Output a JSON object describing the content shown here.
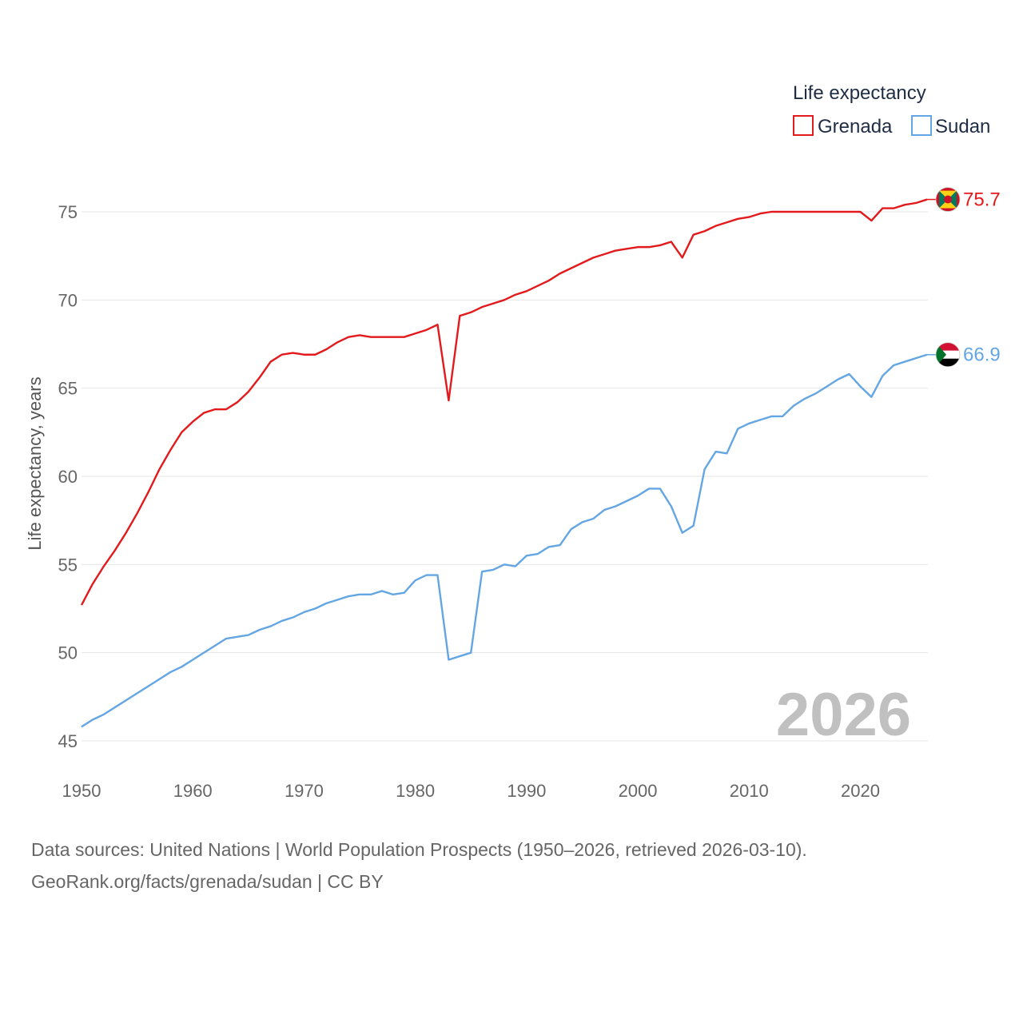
{
  "chart_data": {
    "type": "line",
    "legend_title": "Life expectancy",
    "ylabel": "Life expectancy, years",
    "xlabel": "",
    "xlim": [
      1950,
      2026
    ],
    "ylim": [
      45,
      77
    ],
    "y_ticks": [
      45,
      50,
      55,
      60,
      65,
      70,
      75
    ],
    "x_ticks": [
      1950,
      1960,
      1970,
      1980,
      1990,
      2000,
      2010,
      2020
    ],
    "year_label": "2026",
    "legend_position": "top-right",
    "grid": true,
    "series": [
      {
        "name": "Grenada",
        "color": "#e31a1c",
        "end_label": "75.7",
        "flag_colors": [
          "#ce1126",
          "#fcd116",
          "#007a5e"
        ],
        "values": [
          [
            1950,
            52.7
          ],
          [
            1951,
            53.9
          ],
          [
            1952,
            54.9
          ],
          [
            1953,
            55.8
          ],
          [
            1954,
            56.8
          ],
          [
            1955,
            57.9
          ],
          [
            1956,
            59.1
          ],
          [
            1957,
            60.4
          ],
          [
            1958,
            61.5
          ],
          [
            1959,
            62.5
          ],
          [
            1960,
            63.1
          ],
          [
            1961,
            63.6
          ],
          [
            1962,
            63.8
          ],
          [
            1963,
            63.8
          ],
          [
            1964,
            64.2
          ],
          [
            1965,
            64.8
          ],
          [
            1966,
            65.6
          ],
          [
            1967,
            66.5
          ],
          [
            1968,
            66.9
          ],
          [
            1969,
            67.0
          ],
          [
            1970,
            66.9
          ],
          [
            1971,
            66.9
          ],
          [
            1972,
            67.2
          ],
          [
            1973,
            67.6
          ],
          [
            1974,
            67.9
          ],
          [
            1975,
            68.0
          ],
          [
            1976,
            67.9
          ],
          [
            1977,
            67.9
          ],
          [
            1978,
            67.9
          ],
          [
            1979,
            67.9
          ],
          [
            1980,
            68.1
          ],
          [
            1981,
            68.3
          ],
          [
            1982,
            68.6
          ],
          [
            1983,
            64.3
          ],
          [
            1984,
            69.1
          ],
          [
            1985,
            69.3
          ],
          [
            1986,
            69.6
          ],
          [
            1987,
            69.8
          ],
          [
            1988,
            70.0
          ],
          [
            1989,
            70.3
          ],
          [
            1990,
            70.5
          ],
          [
            1991,
            70.8
          ],
          [
            1992,
            71.1
          ],
          [
            1993,
            71.5
          ],
          [
            1994,
            71.8
          ],
          [
            1995,
            72.1
          ],
          [
            1996,
            72.4
          ],
          [
            1997,
            72.6
          ],
          [
            1998,
            72.8
          ],
          [
            1999,
            72.9
          ],
          [
            2000,
            73.0
          ],
          [
            2001,
            73.0
          ],
          [
            2002,
            73.1
          ],
          [
            2003,
            73.3
          ],
          [
            2004,
            72.4
          ],
          [
            2005,
            73.7
          ],
          [
            2006,
            73.9
          ],
          [
            2007,
            74.2
          ],
          [
            2008,
            74.4
          ],
          [
            2009,
            74.6
          ],
          [
            2010,
            74.7
          ],
          [
            2011,
            74.9
          ],
          [
            2012,
            75.0
          ],
          [
            2013,
            75.0
          ],
          [
            2014,
            75.0
          ],
          [
            2015,
            75.0
          ],
          [
            2016,
            75.0
          ],
          [
            2017,
            75.0
          ],
          [
            2018,
            75.0
          ],
          [
            2019,
            75.0
          ],
          [
            2020,
            75.0
          ],
          [
            2021,
            74.5
          ],
          [
            2022,
            75.2
          ],
          [
            2023,
            75.2
          ],
          [
            2024,
            75.4
          ],
          [
            2025,
            75.5
          ],
          [
            2026,
            75.7
          ]
        ]
      },
      {
        "name": "Sudan",
        "color": "#64a6e3",
        "end_label": "66.9",
        "flag_colors": [
          "#d21034",
          "#ffffff",
          "#000000",
          "#007229"
        ],
        "values": [
          [
            1950,
            45.8
          ],
          [
            1951,
            46.2
          ],
          [
            1952,
            46.5
          ],
          [
            1953,
            46.9
          ],
          [
            1954,
            47.3
          ],
          [
            1955,
            47.7
          ],
          [
            1956,
            48.1
          ],
          [
            1957,
            48.5
          ],
          [
            1958,
            48.9
          ],
          [
            1959,
            49.2
          ],
          [
            1960,
            49.6
          ],
          [
            1961,
            50.0
          ],
          [
            1962,
            50.4
          ],
          [
            1963,
            50.8
          ],
          [
            1964,
            50.9
          ],
          [
            1965,
            51.0
          ],
          [
            1966,
            51.3
          ],
          [
            1967,
            51.5
          ],
          [
            1968,
            51.8
          ],
          [
            1969,
            52.0
          ],
          [
            1970,
            52.3
          ],
          [
            1971,
            52.5
          ],
          [
            1972,
            52.8
          ],
          [
            1973,
            53.0
          ],
          [
            1974,
            53.2
          ],
          [
            1975,
            53.3
          ],
          [
            1976,
            53.3
          ],
          [
            1977,
            53.5
          ],
          [
            1978,
            53.3
          ],
          [
            1979,
            53.4
          ],
          [
            1980,
            54.1
          ],
          [
            1981,
            54.4
          ],
          [
            1982,
            54.4
          ],
          [
            1983,
            49.6
          ],
          [
            1984,
            49.8
          ],
          [
            1985,
            50.0
          ],
          [
            1986,
            54.6
          ],
          [
            1987,
            54.7
          ],
          [
            1988,
            55.0
          ],
          [
            1989,
            54.9
          ],
          [
            1990,
            55.5
          ],
          [
            1991,
            55.6
          ],
          [
            1992,
            56.0
          ],
          [
            1993,
            56.1
          ],
          [
            1994,
            57.0
          ],
          [
            1995,
            57.4
          ],
          [
            1996,
            57.6
          ],
          [
            1997,
            58.1
          ],
          [
            1998,
            58.3
          ],
          [
            1999,
            58.6
          ],
          [
            2000,
            58.9
          ],
          [
            2001,
            59.3
          ],
          [
            2002,
            59.3
          ],
          [
            2003,
            58.3
          ],
          [
            2004,
            56.8
          ],
          [
            2005,
            57.2
          ],
          [
            2006,
            60.4
          ],
          [
            2007,
            61.4
          ],
          [
            2008,
            61.3
          ],
          [
            2009,
            62.7
          ],
          [
            2010,
            63.0
          ],
          [
            2011,
            63.2
          ],
          [
            2012,
            63.4
          ],
          [
            2013,
            63.4
          ],
          [
            2014,
            64.0
          ],
          [
            2015,
            64.4
          ],
          [
            2016,
            64.7
          ],
          [
            2017,
            65.1
          ],
          [
            2018,
            65.5
          ],
          [
            2019,
            65.8
          ],
          [
            2020,
            65.1
          ],
          [
            2021,
            64.5
          ],
          [
            2022,
            65.7
          ],
          [
            2023,
            66.3
          ],
          [
            2024,
            66.5
          ],
          [
            2025,
            66.7
          ],
          [
            2026,
            66.9
          ]
        ]
      }
    ]
  },
  "footer": {
    "source_line": "Data sources: United Nations | World Population Prospects (1950–2026, retrieved 2026-03-10).",
    "credit_line": "GeoRank.org/facts/grenada/sudan | CC BY"
  }
}
